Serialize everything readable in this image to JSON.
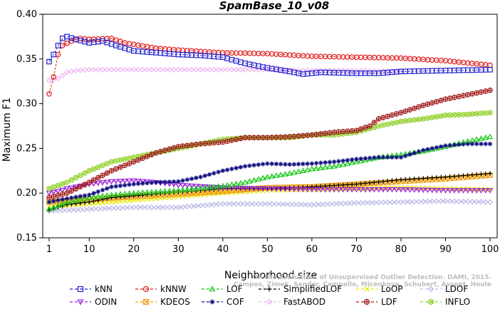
{
  "chart_data": {
    "type": "line",
    "title": "SpamBase_10_v08",
    "xlabel": "Neighborhood size",
    "ylabel": "Maximum F1",
    "xlim": [
      1,
      100
    ],
    "ylim": [
      0.15,
      0.4
    ],
    "xticks": [
      1,
      10,
      20,
      30,
      40,
      50,
      60,
      70,
      80,
      90,
      100
    ],
    "yticks": [
      0.15,
      0.2,
      0.25,
      0.3,
      0.35,
      0.4
    ],
    "ytick_labels": [
      "0.15",
      "0.20",
      "0.25",
      "0.30",
      "0.35",
      "0.40"
    ],
    "grid": false,
    "legend_position": "bottom",
    "watermark": [
      "Campos, Zimek, Sander, Campello, Micenkova, Schubert, Assent, Houle",
      "On the Evaluation of Unsupervised Outlier Detection. DAMI, 2015."
    ],
    "series": [
      {
        "name": "kNN",
        "color": "#1f1fd0",
        "marker": "square",
        "points": [
          [
            1,
            0.347
          ],
          [
            2,
            0.355
          ],
          [
            3,
            0.365
          ],
          [
            4,
            0.373
          ],
          [
            5,
            0.375
          ],
          [
            7,
            0.372
          ],
          [
            10,
            0.368
          ],
          [
            13,
            0.37
          ],
          [
            16,
            0.365
          ],
          [
            20,
            0.359
          ],
          [
            25,
            0.357
          ],
          [
            30,
            0.355
          ],
          [
            35,
            0.354
          ],
          [
            40,
            0.352
          ],
          [
            45,
            0.345
          ],
          [
            50,
            0.34
          ],
          [
            55,
            0.336
          ],
          [
            58,
            0.333
          ],
          [
            62,
            0.335
          ],
          [
            70,
            0.334
          ],
          [
            75,
            0.334
          ],
          [
            80,
            0.336
          ],
          [
            90,
            0.337
          ],
          [
            100,
            0.338
          ]
        ]
      },
      {
        "name": "kNNW",
        "color": "#e01c1c",
        "marker": "circle",
        "points": [
          [
            1,
            0.311
          ],
          [
            2,
            0.33
          ],
          [
            3,
            0.355
          ],
          [
            4,
            0.365
          ],
          [
            6,
            0.37
          ],
          [
            8,
            0.373
          ],
          [
            10,
            0.372
          ],
          [
            15,
            0.373
          ],
          [
            18,
            0.368
          ],
          [
            25,
            0.362
          ],
          [
            30,
            0.36
          ],
          [
            40,
            0.357
          ],
          [
            50,
            0.356
          ],
          [
            60,
            0.353
          ],
          [
            70,
            0.352
          ],
          [
            80,
            0.351
          ],
          [
            90,
            0.348
          ],
          [
            100,
            0.343
          ]
        ]
      },
      {
        "name": "LOF",
        "color": "#17c617",
        "marker": "triangle",
        "points": [
          [
            1,
            0.182
          ],
          [
            5,
            0.19
          ],
          [
            10,
            0.195
          ],
          [
            15,
            0.198
          ],
          [
            20,
            0.2
          ],
          [
            30,
            0.203
          ],
          [
            40,
            0.208
          ],
          [
            45,
            0.212
          ],
          [
            50,
            0.218
          ],
          [
            55,
            0.222
          ],
          [
            60,
            0.227
          ],
          [
            65,
            0.23
          ],
          [
            70,
            0.235
          ],
          [
            75,
            0.24
          ],
          [
            80,
            0.243
          ],
          [
            85,
            0.247
          ],
          [
            90,
            0.252
          ],
          [
            95,
            0.258
          ],
          [
            100,
            0.263
          ]
        ]
      },
      {
        "name": "SimplifiedLOF",
        "color": "#000000",
        "marker": "plus",
        "points": [
          [
            1,
            0.181
          ],
          [
            5,
            0.187
          ],
          [
            10,
            0.19
          ],
          [
            15,
            0.195
          ],
          [
            20,
            0.197
          ],
          [
            30,
            0.201
          ],
          [
            40,
            0.205
          ],
          [
            50,
            0.205
          ],
          [
            60,
            0.207
          ],
          [
            70,
            0.21
          ],
          [
            80,
            0.215
          ],
          [
            90,
            0.218
          ],
          [
            100,
            0.222
          ]
        ]
      },
      {
        "name": "LoOP",
        "color": "#e8e800",
        "marker": "x",
        "points": [
          [
            1,
            0.185
          ],
          [
            10,
            0.188
          ],
          [
            20,
            0.192
          ],
          [
            30,
            0.196
          ],
          [
            40,
            0.2
          ],
          [
            50,
            0.203
          ],
          [
            60,
            0.204
          ],
          [
            70,
            0.205
          ],
          [
            80,
            0.206
          ],
          [
            90,
            0.205
          ],
          [
            100,
            0.204
          ]
        ]
      },
      {
        "name": "LDOF",
        "color": "#b9b9e8",
        "marker": "diamond",
        "points": [
          [
            1,
            0.18
          ],
          [
            10,
            0.182
          ],
          [
            20,
            0.184
          ],
          [
            30,
            0.184
          ],
          [
            40,
            0.188
          ],
          [
            50,
            0.188
          ],
          [
            60,
            0.187
          ],
          [
            70,
            0.189
          ],
          [
            80,
            0.19
          ],
          [
            90,
            0.191
          ],
          [
            100,
            0.19
          ]
        ]
      },
      {
        "name": "ODIN",
        "color": "#9a1fd6",
        "marker": "triangle-down",
        "points": [
          [
            1,
            0.2
          ],
          [
            3,
            0.202
          ],
          [
            5,
            0.205
          ],
          [
            10,
            0.21
          ],
          [
            15,
            0.213
          ],
          [
            20,
            0.214
          ],
          [
            25,
            0.212
          ],
          [
            30,
            0.209
          ],
          [
            40,
            0.206
          ],
          [
            50,
            0.205
          ],
          [
            60,
            0.204
          ],
          [
            70,
            0.204
          ],
          [
            80,
            0.204
          ],
          [
            90,
            0.203
          ],
          [
            100,
            0.203
          ]
        ]
      },
      {
        "name": "KDEOS",
        "color": "#f0a010",
        "marker": "square-x",
        "points": [
          [
            1,
            0.19
          ],
          [
            10,
            0.193
          ],
          [
            20,
            0.196
          ],
          [
            30,
            0.199
          ],
          [
            40,
            0.202
          ],
          [
            50,
            0.206
          ],
          [
            60,
            0.207
          ],
          [
            70,
            0.21
          ],
          [
            80,
            0.213
          ],
          [
            90,
            0.216
          ],
          [
            100,
            0.22
          ]
        ]
      },
      {
        "name": "COF",
        "color": "#101080",
        "marker": "star",
        "points": [
          [
            1,
            0.19
          ],
          [
            5,
            0.194
          ],
          [
            10,
            0.198
          ],
          [
            15,
            0.207
          ],
          [
            20,
            0.21
          ],
          [
            25,
            0.212
          ],
          [
            30,
            0.213
          ],
          [
            35,
            0.218
          ],
          [
            40,
            0.225
          ],
          [
            45,
            0.23
          ],
          [
            50,
            0.233
          ],
          [
            55,
            0.232
          ],
          [
            60,
            0.233
          ],
          [
            65,
            0.235
          ],
          [
            70,
            0.238
          ],
          [
            75,
            0.24
          ],
          [
            80,
            0.24
          ],
          [
            85,
            0.248
          ],
          [
            90,
            0.253
          ],
          [
            95,
            0.255
          ],
          [
            100,
            0.255
          ]
        ]
      },
      {
        "name": "FastABOD",
        "color": "#f0b6f0",
        "marker": "diamond",
        "points": [
          [
            1,
            0.326
          ],
          [
            3,
            0.328
          ],
          [
            5,
            0.335
          ],
          [
            7,
            0.337
          ],
          [
            10,
            0.338
          ],
          [
            20,
            0.338
          ],
          [
            30,
            0.338
          ],
          [
            40,
            0.338
          ],
          [
            50,
            0.338
          ],
          [
            60,
            0.337
          ],
          [
            70,
            0.337
          ],
          [
            80,
            0.336
          ]
        ]
      },
      {
        "name": "LDF",
        "color": "#a01c1c",
        "marker": "circle-plus",
        "points": [
          [
            1,
            0.195
          ],
          [
            5,
            0.2
          ],
          [
            10,
            0.212
          ],
          [
            15,
            0.225
          ],
          [
            20,
            0.235
          ],
          [
            25,
            0.245
          ],
          [
            30,
            0.252
          ],
          [
            35,
            0.255
          ],
          [
            40,
            0.257
          ],
          [
            45,
            0.262
          ],
          [
            50,
            0.262
          ],
          [
            55,
            0.263
          ],
          [
            60,
            0.265
          ],
          [
            65,
            0.268
          ],
          [
            70,
            0.27
          ],
          [
            73,
            0.275
          ],
          [
            75,
            0.283
          ],
          [
            80,
            0.29
          ],
          [
            85,
            0.298
          ],
          [
            90,
            0.305
          ],
          [
            95,
            0.31
          ],
          [
            100,
            0.315
          ]
        ]
      },
      {
        "name": "INFLO",
        "color": "#8fd028",
        "marker": "circle-x",
        "points": [
          [
            1,
            0.205
          ],
          [
            5,
            0.212
          ],
          [
            10,
            0.225
          ],
          [
            15,
            0.235
          ],
          [
            20,
            0.24
          ],
          [
            25,
            0.245
          ],
          [
            30,
            0.25
          ],
          [
            35,
            0.255
          ],
          [
            40,
            0.26
          ],
          [
            45,
            0.262
          ],
          [
            50,
            0.262
          ],
          [
            55,
            0.262
          ],
          [
            60,
            0.265
          ],
          [
            65,
            0.265
          ],
          [
            70,
            0.268
          ],
          [
            75,
            0.275
          ],
          [
            80,
            0.28
          ],
          [
            85,
            0.283
          ],
          [
            90,
            0.287
          ],
          [
            95,
            0.288
          ],
          [
            100,
            0.29
          ]
        ]
      }
    ],
    "legend_rows": [
      [
        "kNN",
        "kNNW",
        "LOF",
        "SimplifiedLOF",
        "LoOP",
        "LDOF"
      ],
      [
        "ODIN",
        "KDEOS",
        "COF",
        "FastABOD",
        "LDF",
        "INFLO"
      ]
    ]
  }
}
